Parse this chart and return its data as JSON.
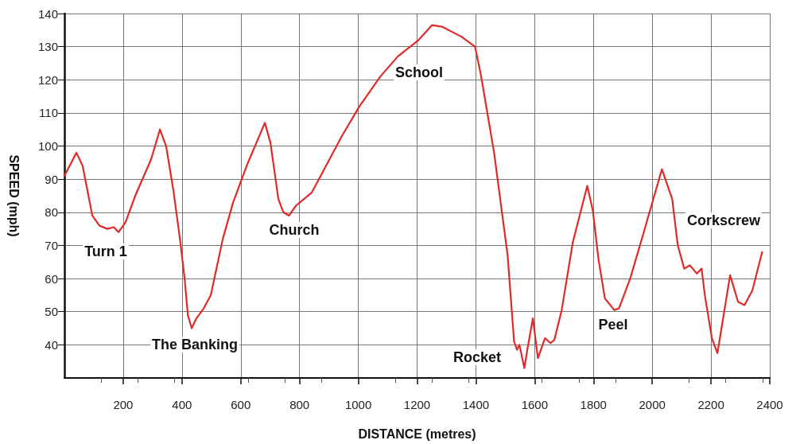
{
  "chart_data": {
    "type": "line",
    "xlabel": "DISTANCE (metres)",
    "ylabel": "SPEED (mph)",
    "x": [
      0,
      41,
      62,
      95,
      119,
      146,
      168,
      184,
      208,
      241,
      295,
      325,
      346,
      371,
      393,
      409,
      420,
      433,
      449,
      474,
      498,
      539,
      574,
      620,
      682,
      701,
      728,
      745,
      764,
      788,
      842,
      890,
      944,
      1004,
      1075,
      1134,
      1205,
      1251,
      1286,
      1351,
      1397,
      1416,
      1462,
      1508,
      1530,
      1540,
      1548,
      1565,
      1575,
      1594,
      1611,
      1635,
      1654,
      1667,
      1692,
      1730,
      1779,
      1798,
      1817,
      1839,
      1871,
      1887,
      1925,
      1968,
      2033,
      2068,
      2087,
      2109,
      2128,
      2152,
      2168,
      2179,
      2203,
      2222,
      2265,
      2292,
      2314,
      2341,
      2374
    ],
    "series": [
      {
        "color": "#e02a2a",
        "values": [
          91,
          98,
          94,
          79,
          76,
          75,
          75.5,
          74,
          77,
          85,
          96,
          105,
          100,
          86.5,
          72,
          60,
          49,
          45,
          48,
          51,
          55,
          72,
          83,
          94,
          107,
          101,
          84,
          80,
          79,
          82,
          86,
          94,
          103,
          112,
          121,
          127,
          132,
          136.5,
          136,
          133,
          130,
          122,
          98,
          67,
          41,
          38.5,
          40,
          33,
          38.5,
          48,
          36,
          42,
          40.5,
          41.5,
          50.5,
          71,
          88,
          80.5,
          66,
          54,
          50.5,
          51,
          60,
          73,
          93,
          84,
          70,
          63,
          64,
          61.5,
          63,
          55,
          42,
          37.5,
          61,
          53,
          52,
          56.5,
          68
        ]
      }
    ],
    "xlim": [
      0,
      2400
    ],
    "xticks": [
      200,
      400,
      600,
      800,
      1000,
      1200,
      1400,
      1600,
      1800,
      2000,
      2200,
      2400
    ],
    "ylim": [
      30,
      140
    ],
    "yticks": [
      40,
      50,
      60,
      70,
      80,
      90,
      100,
      110,
      120,
      130,
      140
    ],
    "grid": true,
    "marker": "none",
    "line_style": "solid",
    "annotations": [
      "Turn 1",
      "The Banking",
      "Church",
      "School",
      "Rocket",
      "Peel",
      "Corkscrew"
    ]
  }
}
